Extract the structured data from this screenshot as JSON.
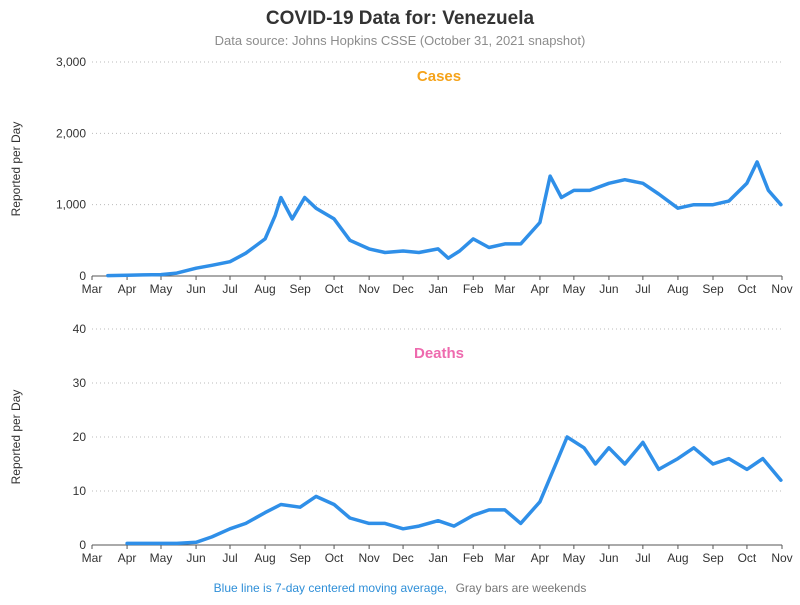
{
  "title": "COVID-19 Data for: Venezuela",
  "subtitle": "Data source: Johns Hopkins CSSE (October 31, 2021 snapshot)",
  "footer": {
    "blue_text": "Blue line is 7-day centered moving average,",
    "gray_text": "Gray bars are weekends"
  },
  "colors": {
    "cases_bar": "#f5a31a",
    "cases_title": "#f5a31a",
    "deaths_bar": "#ee6aae",
    "deaths_title": "#ee6aae",
    "moving_average": "#2f8fe8",
    "weekend_bar": "#9a9a9a",
    "grid": "#bbbbbb"
  },
  "chart_data": [
    {
      "type": "bar",
      "title": "Cases",
      "ylabel": "Reported per Day",
      "xlabel": "",
      "ylim": [
        0,
        3000
      ],
      "yticks": [
        0,
        1000,
        2000,
        3000
      ],
      "ytick_labels": [
        "0",
        "1,000",
        "2,000",
        "3,000"
      ],
      "x_start": "2020-03-01",
      "x_end": "2021-11-01",
      "month_ticks": [
        "2020-03-01",
        "2020-04-01",
        "2020-05-01",
        "2020-06-01",
        "2020-07-01",
        "2020-08-01",
        "2020-09-01",
        "2020-10-01",
        "2020-11-01",
        "2020-12-01",
        "2021-01-01",
        "2021-02-01",
        "2021-03-01",
        "2021-04-01",
        "2021-05-01",
        "2021-06-01",
        "2021-07-01",
        "2021-08-01",
        "2021-09-01",
        "2021-10-01",
        "2021-11-01"
      ],
      "month_labels": [
        "Mar",
        "Apr",
        "May",
        "Jun",
        "Jul",
        "Aug",
        "Sep",
        "Oct",
        "Nov",
        "Dec",
        "Jan",
        "Feb",
        "Mar",
        "Apr",
        "May",
        "Jun",
        "Jul",
        "Aug",
        "Sep",
        "Oct",
        "Nov"
      ],
      "grid": "horizontal dotted",
      "legend": "none",
      "series": [
        {
          "name": "7-day centered moving average",
          "x": [
            "2020-03-15",
            "2020-04-01",
            "2020-04-15",
            "2020-05-01",
            "2020-05-15",
            "2020-06-01",
            "2020-06-15",
            "2020-07-01",
            "2020-07-15",
            "2020-08-01",
            "2020-08-10",
            "2020-08-15",
            "2020-08-25",
            "2020-09-05",
            "2020-09-15",
            "2020-10-01",
            "2020-10-15",
            "2020-11-01",
            "2020-11-15",
            "2020-12-01",
            "2020-12-15",
            "2021-01-01",
            "2021-01-10",
            "2021-01-20",
            "2021-02-01",
            "2021-02-15",
            "2021-03-01",
            "2021-03-15",
            "2021-04-01",
            "2021-04-10",
            "2021-04-20",
            "2021-05-01",
            "2021-05-15",
            "2021-06-01",
            "2021-06-15",
            "2021-07-01",
            "2021-07-15",
            "2021-08-01",
            "2021-08-15",
            "2021-09-01",
            "2021-09-15",
            "2021-10-01",
            "2021-10-10",
            "2021-10-20",
            "2021-10-31"
          ],
          "values": [
            5,
            10,
            15,
            20,
            40,
            110,
            150,
            200,
            320,
            520,
            850,
            1100,
            800,
            1100,
            950,
            800,
            500,
            380,
            330,
            350,
            330,
            380,
            250,
            350,
            520,
            400,
            450,
            450,
            750,
            1400,
            1100,
            1200,
            1200,
            1300,
            1350,
            1300,
            1150,
            950,
            1000,
            1000,
            1050,
            1300,
            1600,
            1200,
            1000
          ]
        }
      ]
    },
    {
      "type": "bar",
      "title": "Deaths",
      "ylabel": "Reported per Day",
      "xlabel": "",
      "ylim": [
        0,
        40
      ],
      "yticks": [
        0,
        10,
        20,
        30,
        40
      ],
      "ytick_labels": [
        "0",
        "10",
        "20",
        "30",
        "40"
      ],
      "x_start": "2020-03-01",
      "x_end": "2021-11-01",
      "month_ticks": [
        "2020-03-01",
        "2020-04-01",
        "2020-05-01",
        "2020-06-01",
        "2020-07-01",
        "2020-08-01",
        "2020-09-01",
        "2020-10-01",
        "2020-11-01",
        "2020-12-01",
        "2021-01-01",
        "2021-02-01",
        "2021-03-01",
        "2021-04-01",
        "2021-05-01",
        "2021-06-01",
        "2021-07-01",
        "2021-08-01",
        "2021-09-01",
        "2021-10-01",
        "2021-11-01"
      ],
      "month_labels": [
        "Mar",
        "Apr",
        "May",
        "Jun",
        "Jul",
        "Aug",
        "Sep",
        "Oct",
        "Nov",
        "Dec",
        "Jan",
        "Feb",
        "Mar",
        "Apr",
        "May",
        "Jun",
        "Jul",
        "Aug",
        "Sep",
        "Oct",
        "Nov"
      ],
      "grid": "horizontal dotted",
      "legend": "none",
      "series": [
        {
          "name": "7-day centered moving average",
          "x": [
            "2020-04-01",
            "2020-04-15",
            "2020-05-01",
            "2020-05-15",
            "2020-06-01",
            "2020-06-15",
            "2020-07-01",
            "2020-07-15",
            "2020-08-01",
            "2020-08-15",
            "2020-09-01",
            "2020-09-15",
            "2020-10-01",
            "2020-10-15",
            "2020-11-01",
            "2020-11-15",
            "2020-12-01",
            "2020-12-15",
            "2021-01-01",
            "2021-01-15",
            "2021-02-01",
            "2021-02-15",
            "2021-03-01",
            "2021-03-15",
            "2021-04-01",
            "2021-04-15",
            "2021-04-25",
            "2021-05-10",
            "2021-05-20",
            "2021-06-01",
            "2021-06-15",
            "2021-07-01",
            "2021-07-15",
            "2021-08-01",
            "2021-08-15",
            "2021-09-01",
            "2021-09-15",
            "2021-10-01",
            "2021-10-15",
            "2021-10-31"
          ],
          "values": [
            0.3,
            0.3,
            0.3,
            0.3,
            0.5,
            1.5,
            3,
            4,
            6,
            7.5,
            7,
            9,
            7.5,
            5,
            4,
            4,
            3,
            3.5,
            4.5,
            3.5,
            5.5,
            6.5,
            6.5,
            4,
            8,
            15,
            20,
            18,
            15,
            18,
            15,
            19,
            14,
            16,
            18,
            15,
            16,
            14,
            16,
            12
          ]
        }
      ]
    }
  ]
}
